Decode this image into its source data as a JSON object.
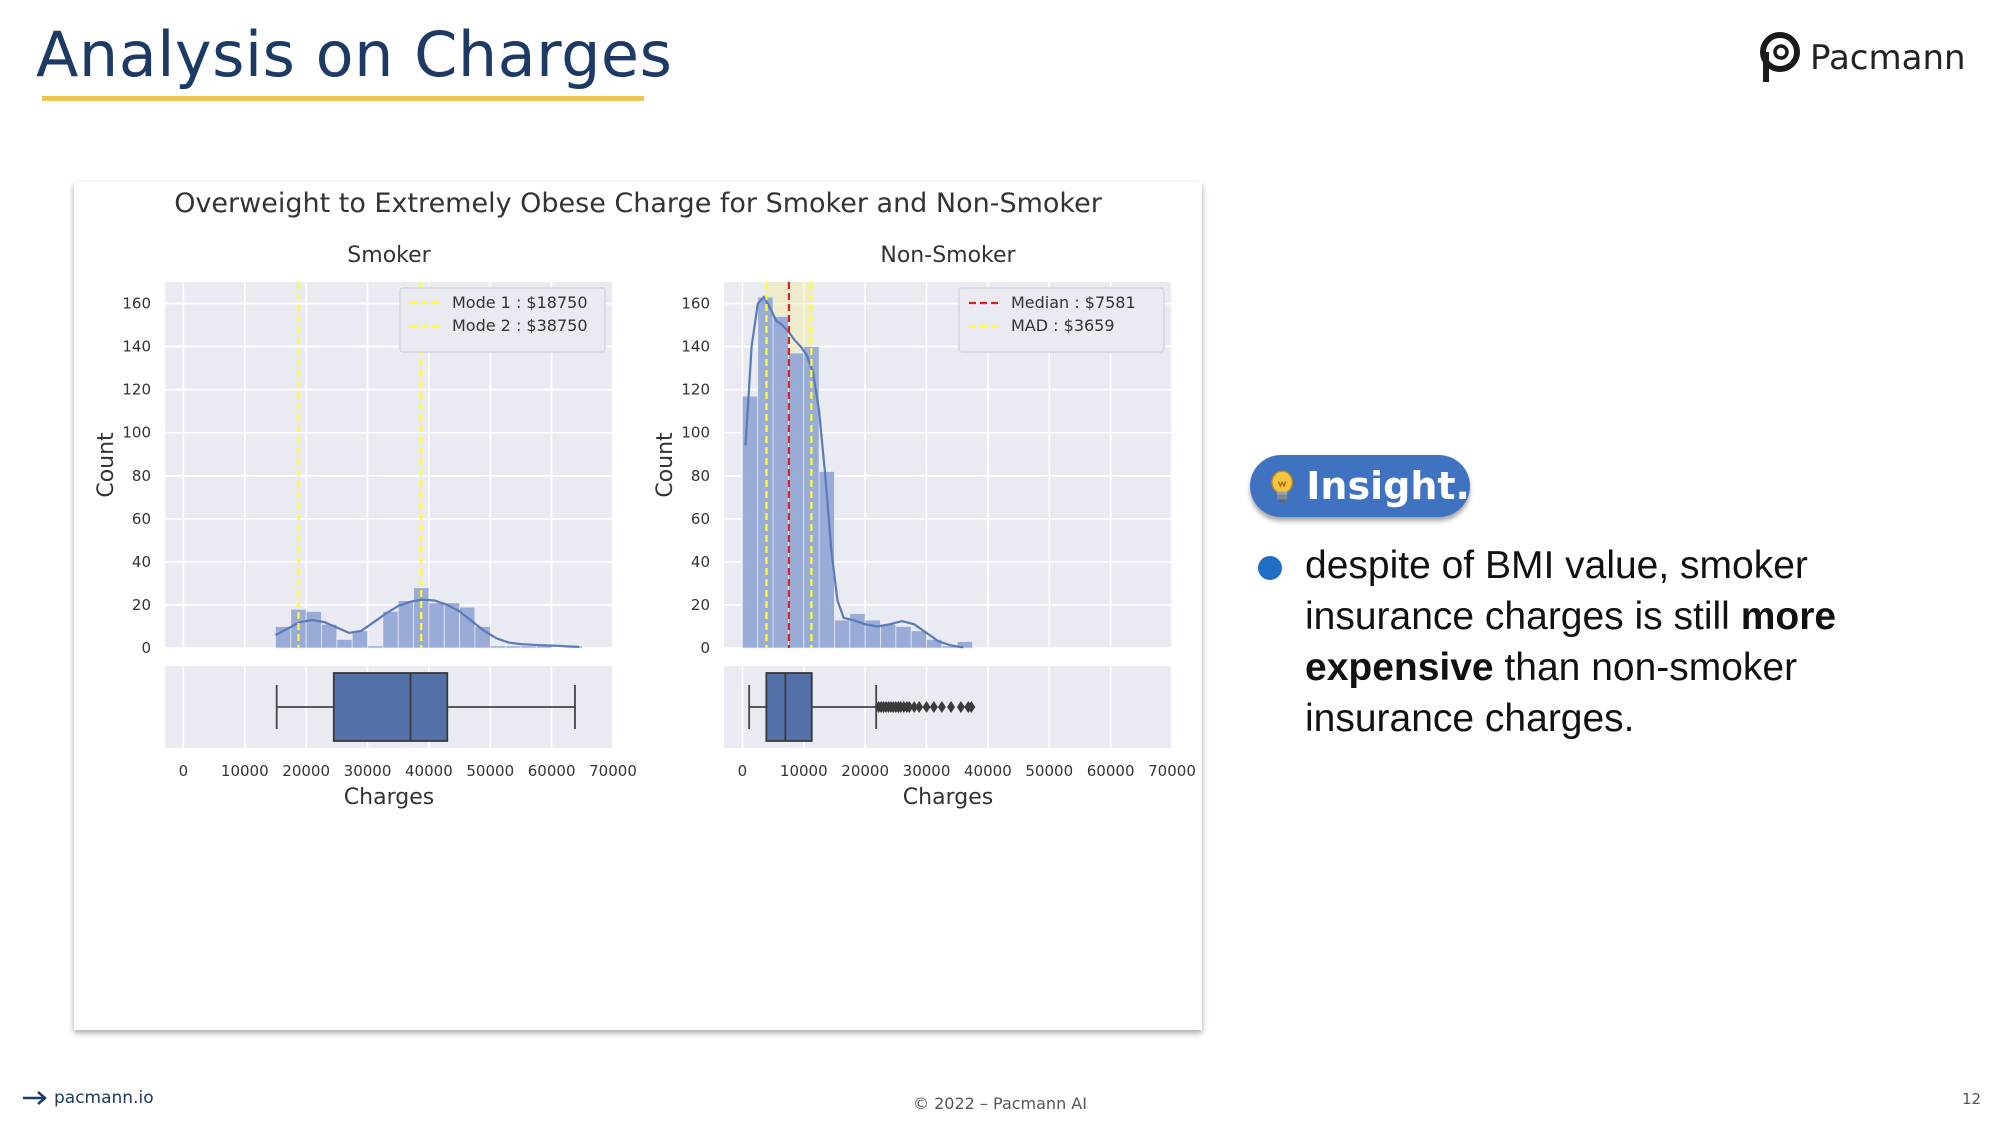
{
  "slide": {
    "title": "Analysis on Charges",
    "logo_text": "Pacmann",
    "insight_label": "Insight.",
    "insight_parts": [
      "despite of BMI value, smoker insurance charges is still ",
      "more expensive",
      " than non-smoker insurance charges."
    ],
    "footer_left": "pacmann.io",
    "footer_center": "© 2022 – Pacmann AI",
    "page_number": "12"
  },
  "colors": {
    "title": "#1c3a63",
    "underline": "#eec64f",
    "insight_pill": "#3f73c2",
    "bullet": "#1e6fc4",
    "bar": "#95a9d6",
    "kde": "#5a7ab8",
    "box": "#5470a8",
    "plot_bg": "#eaeaf2",
    "mode_line": "#ffff33",
    "median_line": "#e02020"
  },
  "chart_data": [
    {
      "type": "bar",
      "kind": "histogram",
      "suptitle": "Overweight to Extremely Obese Charge for Smoker and Non-Smoker",
      "title": "Smoker",
      "xlabel": "Charges",
      "ylabel": "Count",
      "xlim": [
        -3000,
        70000
      ],
      "ylim": [
        0,
        170
      ],
      "xticks": [
        0,
        10000,
        20000,
        30000,
        40000,
        50000,
        60000,
        70000
      ],
      "yticks": [
        0,
        20,
        40,
        60,
        80,
        100,
        120,
        140,
        160
      ],
      "grid": true,
      "bins": {
        "left_edges": [
          15000,
          17500,
          20000,
          22500,
          25000,
          27500,
          30000,
          32500,
          35000,
          37500,
          40000,
          42500,
          45000,
          47500,
          50000,
          52500,
          55000,
          57500,
          60000,
          62500
        ],
        "width": 2500,
        "counts": [
          10,
          18,
          17,
          11,
          4,
          8,
          1,
          17,
          22,
          28,
          21,
          21,
          19,
          10,
          1,
          1,
          1,
          1,
          0,
          1
        ]
      },
      "kde": {
        "x": [
          15000,
          17000,
          19000,
          21000,
          23000,
          25000,
          27000,
          29000,
          31000,
          33000,
          35000,
          37000,
          39000,
          41000,
          43000,
          45000,
          47000,
          49000,
          51000,
          53000,
          55000,
          57000,
          59000,
          61000,
          63000,
          64500
        ],
        "y": [
          6,
          9,
          12,
          13,
          12,
          9.5,
          7,
          8,
          12,
          16,
          19.5,
          21.5,
          22.5,
          22,
          20,
          17,
          12.5,
          8,
          4.5,
          2.5,
          1.8,
          1.5,
          1.2,
          1,
          0.7,
          0.5
        ]
      },
      "vlines": [
        {
          "label": "Mode 1 : $18750",
          "x": 18750,
          "color": "#ffff33",
          "style": "dashed"
        },
        {
          "label": "Mode 2 : $38750",
          "x": 38750,
          "color": "#ffff33",
          "style": "dashed"
        }
      ],
      "legend": "top-right",
      "boxplot": {
        "whisker_low": 15200,
        "q1": 24500,
        "median": 37000,
        "q3": 43000,
        "whisker_high": 63800,
        "outliers": []
      }
    },
    {
      "type": "bar",
      "kind": "histogram",
      "title": "Non-Smoker",
      "xlabel": "Charges",
      "ylabel": "Count",
      "xlim": [
        -3000,
        70000
      ],
      "ylim": [
        0,
        170
      ],
      "xticks": [
        0,
        10000,
        20000,
        30000,
        40000,
        50000,
        60000,
        70000
      ],
      "yticks": [
        0,
        20,
        40,
        60,
        80,
        100,
        120,
        140,
        160
      ],
      "grid": true,
      "bins": {
        "left_edges": [
          0,
          2500,
          5000,
          7500,
          10000,
          12500,
          15000,
          17500,
          20000,
          22500,
          25000,
          27500,
          30000,
          32500,
          35000
        ],
        "width": 2500,
        "counts": [
          117,
          163,
          154,
          137,
          140,
          82,
          13,
          16,
          13,
          11,
          10,
          8,
          4,
          1,
          3
        ]
      },
      "kde": {
        "x": [
          500,
          1500,
          2500,
          3500,
          4500,
          5500,
          6500,
          7500,
          8500,
          9500,
          10500,
          11500,
          12500,
          13500,
          14500,
          15500,
          16500,
          18000,
          20000,
          22000,
          24000,
          26000,
          28000,
          30000,
          32000,
          34000,
          36000
        ],
        "y": [
          94,
          140,
          160,
          163,
          158,
          152,
          150,
          147,
          143,
          140,
          136,
          128,
          110,
          80,
          45,
          22,
          14,
          13,
          11,
          10,
          11,
          12.5,
          11,
          7,
          3,
          1.2,
          0.3
        ]
      },
      "vlines": [
        {
          "label": "Median : $7581",
          "x": 7581,
          "color": "#e02020",
          "style": "dashed"
        },
        {
          "label": "MAD : $3659",
          "x": 3922,
          "color": "#ffff33",
          "style": "dashed"
        },
        {
          "label": "",
          "x": 11240,
          "color": "#ffff33",
          "style": "dashed"
        }
      ],
      "shaded_range": [
        3922,
        11240
      ],
      "legend": "top-right",
      "boxplot": {
        "whisker_low": 1100,
        "q1": 3900,
        "median": 7000,
        "q3": 11300,
        "whisker_high": 21800,
        "outliers": [
          22200,
          22600,
          23000,
          23400,
          23800,
          24200,
          24600,
          25000,
          25400,
          25800,
          26300,
          26800,
          27200,
          28000,
          28800,
          30000,
          31200,
          32500,
          34000,
          35600,
          36800,
          37300
        ]
      }
    }
  ]
}
